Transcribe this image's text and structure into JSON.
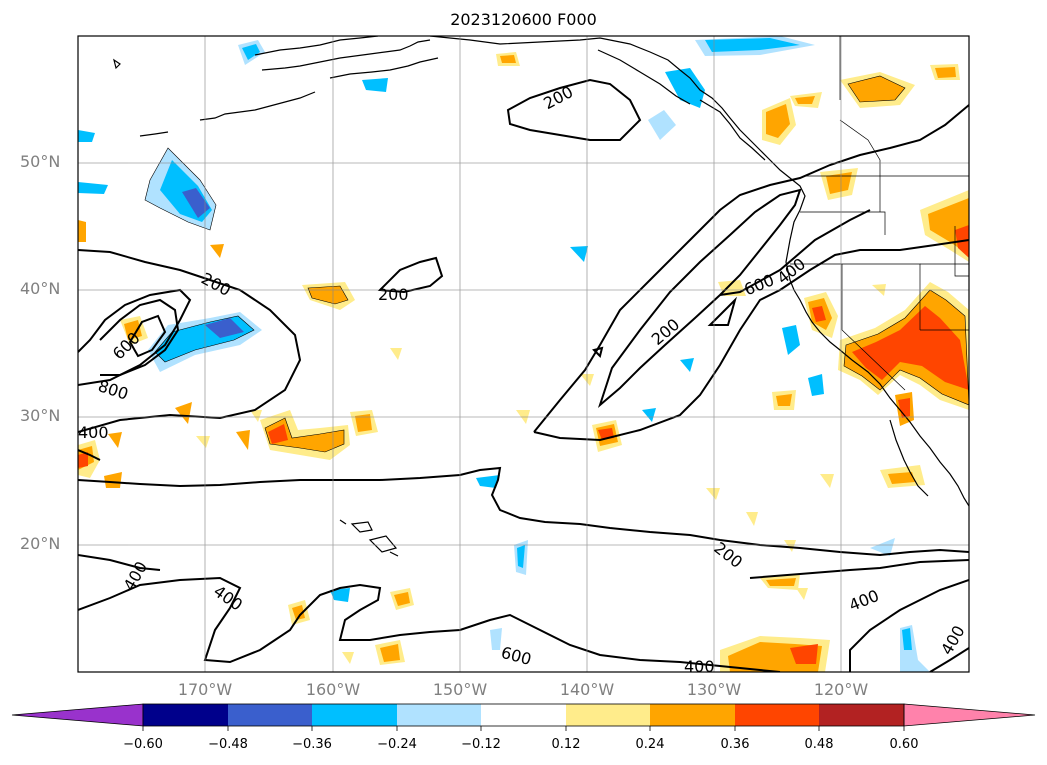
{
  "title": "2023120600 F000",
  "lat_labels": [
    {
      "text": "50°N",
      "lat": 50
    },
    {
      "text": "40°N",
      "lat": 40
    },
    {
      "text": "30°N",
      "lat": 30
    },
    {
      "text": "20°N",
      "lat": 20
    }
  ],
  "lon_labels": [
    {
      "text": "170°W",
      "lon": -170
    },
    {
      "text": "160°W",
      "lon": -160
    },
    {
      "text": "150°W",
      "lon": -150
    },
    {
      "text": "140°W",
      "lon": -140
    },
    {
      "text": "130°W",
      "lon": -130
    },
    {
      "text": "120°W",
      "lon": -120
    }
  ],
  "contour_labels": [
    "200",
    "200",
    "200",
    "200",
    "600",
    "800",
    "600",
    "400",
    "400",
    "200",
    "400",
    "400",
    "600",
    "400",
    "400",
    "200",
    "400"
  ],
  "colorbar": {
    "ticks": [
      "−0.60",
      "−0.48",
      "−0.36",
      "−0.24",
      "−0.12",
      "0.12",
      "0.24",
      "0.36",
      "0.48",
      "0.60"
    ],
    "colors": [
      "#9932cc",
      "#00008b",
      "#3a5fcd",
      "#00bfff",
      "#b0e2ff",
      "#ffffff",
      "#ffec8b",
      "#ffa500",
      "#ff4500",
      "#b22222",
      "#ff82ab"
    ]
  },
  "palette": {
    "pos1": "#ffec8b",
    "pos2": "#ffa500",
    "pos3": "#ff4500",
    "neg1": "#b0e2ff",
    "neg2": "#00bfff",
    "neg3": "#3a5fcd"
  }
}
